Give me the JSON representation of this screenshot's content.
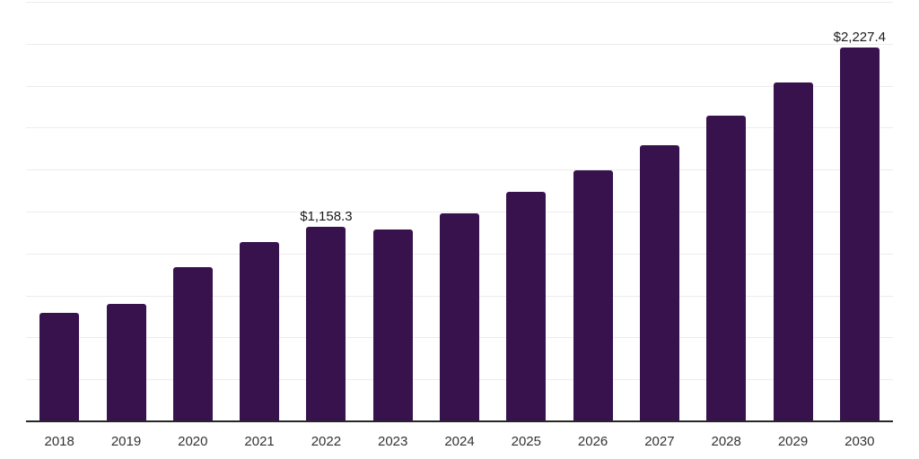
{
  "chart_data": {
    "type": "bar",
    "title": "",
    "xlabel": "",
    "ylabel": "",
    "legend": "none",
    "grid": "horizontal",
    "categories": [
      "2018",
      "2019",
      "2020",
      "2021",
      "2022",
      "2023",
      "2024",
      "2025",
      "2026",
      "2027",
      "2028",
      "2029",
      "2030"
    ],
    "values": [
      645,
      700,
      920,
      1067,
      1158.3,
      1142,
      1241,
      1366,
      1496,
      1647,
      1820,
      2017,
      2227.4
    ],
    "data_labels": {
      "2022": "$1,158.3",
      "2030": "$2,227.4"
    },
    "values_note": "only 2022 and 2030 carry visible labels; other values estimated from gridlines",
    "ylim": [
      0,
      2500
    ],
    "ytick_step": 250,
    "y_axis_labels_visible": false,
    "colors": {
      "bar": "#38124D",
      "gridline": "#ececec",
      "axis_line": "#262626",
      "tick_label": "#333333",
      "data_label": "#1a1a1a",
      "background": "#ffffff"
    }
  }
}
